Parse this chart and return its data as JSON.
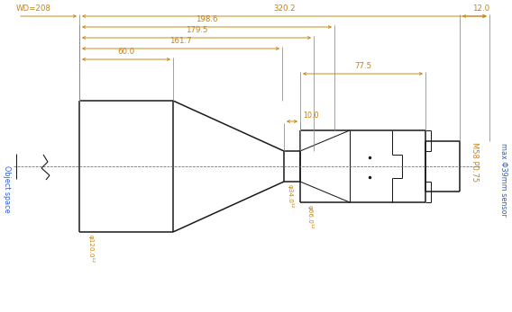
{
  "bg_color": "#ffffff",
  "lc": "#1a1a1a",
  "orange": "#c8820a",
  "blue": "#3060c8",
  "gray": "#888888",
  "figsize": [
    5.68,
    3.47
  ],
  "dpi": 100,
  "labels": {
    "WD": "WD=208",
    "total": "320.2",
    "d198": "198.6",
    "d179": "179.5",
    "d161": "161.7",
    "d60": "60.0",
    "d77": "77.5",
    "d10": "10.0",
    "d12": "12.0",
    "phi120": "φ120.0¹²",
    "phi34": "φ34.0¹²",
    "phi66": "φ66.0¹²",
    "M58": "M58 P0.75",
    "maxsensor": "max Φ39mm sensor",
    "objspace": "Object space"
  }
}
